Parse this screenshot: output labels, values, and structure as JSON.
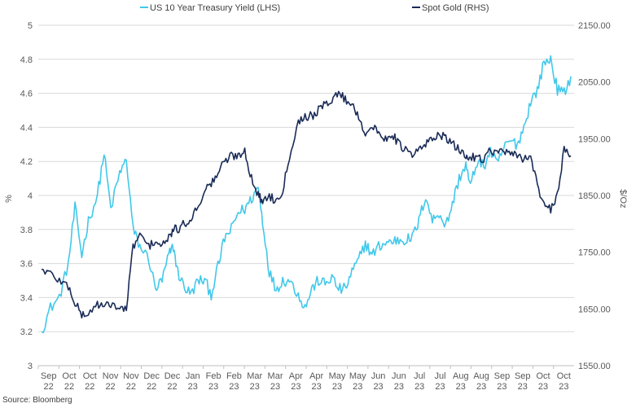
{
  "chart_data": {
    "type": "line",
    "legend_position": "top",
    "grid": {
      "horizontal": true,
      "vertical": false
    },
    "x_tick_labels": [
      [
        "Sep",
        "22"
      ],
      [
        "Oct",
        "22"
      ],
      [
        "Oct",
        "22"
      ],
      [
        "Nov",
        "22"
      ],
      [
        "Nov",
        "22"
      ],
      [
        "Dec",
        "22"
      ],
      [
        "Dec",
        "22"
      ],
      [
        "Jan",
        "23"
      ],
      [
        "Feb",
        "23"
      ],
      [
        "Feb",
        "23"
      ],
      [
        "Mar",
        "23"
      ],
      [
        "Mar",
        "23"
      ],
      [
        "Apr",
        "23"
      ],
      [
        "Apr",
        "23"
      ],
      [
        "May",
        "23"
      ],
      [
        "May",
        "23"
      ],
      [
        "Jun",
        "23"
      ],
      [
        "Jun",
        "23"
      ],
      [
        "Jul",
        "23"
      ],
      [
        "Jul",
        "23"
      ],
      [
        "Aug",
        "23"
      ],
      [
        "Aug",
        "23"
      ],
      [
        "Sep",
        "23"
      ],
      [
        "Sep",
        "23"
      ],
      [
        "Oct",
        "23"
      ],
      [
        "Oct",
        "23"
      ]
    ],
    "y_left": {
      "label": "%",
      "range": [
        3,
        5
      ],
      "ticks": [
        "3",
        "3.2",
        "3.4",
        "3.6",
        "3.8",
        "4",
        "4.2",
        "4.4",
        "4.6",
        "4.8",
        "5"
      ]
    },
    "y_right": {
      "label": "$/Oz",
      "range": [
        1550,
        2150
      ],
      "ticks": [
        "1550.00",
        "1650.00",
        "1750.00",
        "1850.00",
        "1950.00",
        "2050.00",
        "2150.00"
      ]
    },
    "series": [
      {
        "name": "US 10 Year Treasury Yield (LHS)",
        "axis": "left",
        "color": "#41c8ea",
        "anchors": [
          [
            0,
            3.2
          ],
          [
            0.4,
            3.34
          ],
          [
            0.8,
            3.4
          ],
          [
            1.2,
            3.6
          ],
          [
            1.5,
            3.93
          ],
          [
            1.8,
            3.65
          ],
          [
            2.1,
            3.85
          ],
          [
            2.5,
            4.0
          ],
          [
            2.8,
            4.25
          ],
          [
            3.1,
            3.92
          ],
          [
            3.5,
            4.13
          ],
          [
            3.8,
            4.21
          ],
          [
            4.1,
            3.8
          ],
          [
            4.4,
            3.7
          ],
          [
            4.8,
            3.63
          ],
          [
            5.1,
            3.45
          ],
          [
            5.4,
            3.5
          ],
          [
            5.7,
            3.65
          ],
          [
            5.9,
            3.7
          ],
          [
            6.1,
            3.55
          ],
          [
            6.4,
            3.46
          ],
          [
            6.7,
            3.42
          ],
          [
            7.0,
            3.5
          ],
          [
            7.3,
            3.5
          ],
          [
            7.6,
            3.42
          ],
          [
            7.9,
            3.58
          ],
          [
            8.2,
            3.75
          ],
          [
            8.5,
            3.8
          ],
          [
            8.8,
            3.9
          ],
          [
            9.1,
            3.92
          ],
          [
            9.4,
            3.98
          ],
          [
            9.7,
            4.05
          ],
          [
            9.9,
            3.85
          ],
          [
            10.2,
            3.55
          ],
          [
            10.5,
            3.45
          ],
          [
            10.8,
            3.5
          ],
          [
            11.1,
            3.5
          ],
          [
            11.5,
            3.42
          ],
          [
            11.8,
            3.34
          ],
          [
            12.1,
            3.45
          ],
          [
            12.4,
            3.5
          ],
          [
            12.7,
            3.48
          ],
          [
            13.0,
            3.52
          ],
          [
            13.3,
            3.45
          ],
          [
            13.6,
            3.45
          ],
          [
            13.9,
            3.55
          ],
          [
            14.2,
            3.62
          ],
          [
            14.5,
            3.72
          ],
          [
            14.8,
            3.65
          ],
          [
            15.1,
            3.7
          ],
          [
            15.4,
            3.72
          ],
          [
            15.7,
            3.73
          ],
          [
            16.0,
            3.74
          ],
          [
            16.3,
            3.74
          ],
          [
            16.6,
            3.75
          ],
          [
            16.9,
            3.85
          ],
          [
            17.2,
            4.0
          ],
          [
            17.5,
            3.85
          ],
          [
            17.8,
            3.9
          ],
          [
            18.1,
            3.82
          ],
          [
            18.4,
            3.95
          ],
          [
            18.7,
            4.1
          ],
          [
            19.0,
            4.18
          ],
          [
            19.2,
            4.05
          ],
          [
            19.5,
            4.2
          ],
          [
            19.8,
            4.17
          ],
          [
            20.1,
            4.26
          ],
          [
            20.4,
            4.18
          ],
          [
            20.7,
            4.28
          ],
          [
            21.0,
            4.32
          ],
          [
            21.3,
            4.3
          ],
          [
            21.6,
            4.4
          ],
          [
            21.9,
            4.55
          ],
          [
            22.2,
            4.62
          ],
          [
            22.5,
            4.78
          ],
          [
            22.8,
            4.8
          ],
          [
            23.1,
            4.62
          ],
          [
            23.4,
            4.6
          ],
          [
            23.7,
            4.7
          ]
        ]
      },
      {
        "name": "Spot Gold (RHS)",
        "axis": "right",
        "color": "#1a2b57",
        "anchors": [
          [
            0,
            1720
          ],
          [
            0.4,
            1712
          ],
          [
            0.8,
            1700
          ],
          [
            1.2,
            1690
          ],
          [
            1.5,
            1660
          ],
          [
            1.8,
            1640
          ],
          [
            2.1,
            1640
          ],
          [
            2.5,
            1660
          ],
          [
            2.8,
            1652
          ],
          [
            3.1,
            1660
          ],
          [
            3.5,
            1650
          ],
          [
            3.8,
            1650
          ],
          [
            4.1,
            1760
          ],
          [
            4.4,
            1780
          ],
          [
            4.8,
            1760
          ],
          [
            5.1,
            1770
          ],
          [
            5.4,
            1760
          ],
          [
            5.7,
            1775
          ],
          [
            5.9,
            1790
          ],
          [
            6.1,
            1790
          ],
          [
            6.4,
            1800
          ],
          [
            6.7,
            1810
          ],
          [
            7.0,
            1830
          ],
          [
            7.3,
            1860
          ],
          [
            7.6,
            1870
          ],
          [
            7.9,
            1890
          ],
          [
            8.2,
            1910
          ],
          [
            8.5,
            1920
          ],
          [
            8.8,
            1920
          ],
          [
            9.1,
            1930
          ],
          [
            9.4,
            1880
          ],
          [
            9.7,
            1850
          ],
          [
            9.9,
            1840
          ],
          [
            10.2,
            1850
          ],
          [
            10.5,
            1840
          ],
          [
            10.8,
            1860
          ],
          [
            11.1,
            1920
          ],
          [
            11.5,
            1980
          ],
          [
            11.8,
            1990
          ],
          [
            12.1,
            1990
          ],
          [
            12.4,
            2000
          ],
          [
            12.7,
            2010
          ],
          [
            13.0,
            2020
          ],
          [
            13.3,
            2030
          ],
          [
            13.6,
            2020
          ],
          [
            13.9,
            2010
          ],
          [
            14.2,
            1990
          ],
          [
            14.5,
            1960
          ],
          [
            14.8,
            1970
          ],
          [
            15.1,
            1960
          ],
          [
            15.4,
            1950
          ],
          [
            15.7,
            1960
          ],
          [
            16.0,
            1940
          ],
          [
            16.3,
            1930
          ],
          [
            16.6,
            1920
          ],
          [
            16.9,
            1930
          ],
          [
            17.2,
            1940
          ],
          [
            17.5,
            1950
          ],
          [
            17.8,
            1960
          ],
          [
            18.1,
            1950
          ],
          [
            18.4,
            1940
          ],
          [
            18.7,
            1930
          ],
          [
            19.0,
            1920
          ],
          [
            19.2,
            1915
          ],
          [
            19.5,
            1920
          ],
          [
            19.8,
            1915
          ],
          [
            20.1,
            1930
          ],
          [
            20.4,
            1925
          ],
          [
            20.7,
            1930
          ],
          [
            21.0,
            1920
          ],
          [
            21.3,
            1920
          ],
          [
            21.6,
            1915
          ],
          [
            21.9,
            1920
          ],
          [
            22.2,
            1870
          ],
          [
            22.5,
            1830
          ],
          [
            22.8,
            1825
          ],
          [
            23.1,
            1850
          ],
          [
            23.4,
            1930
          ],
          [
            23.7,
            1920
          ]
        ]
      }
    ]
  },
  "source": "Source: Bloomberg"
}
